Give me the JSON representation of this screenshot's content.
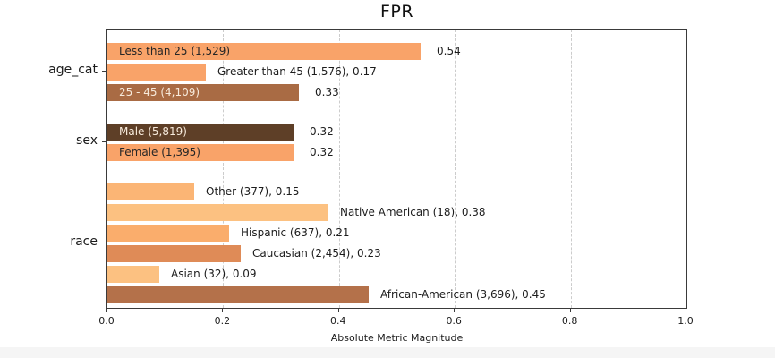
{
  "chart_data": {
    "type": "bar",
    "orientation": "horizontal",
    "title": "FPR",
    "xlabel": "Absolute Metric Magnitude",
    "xlim": [
      0.0,
      1.0
    ],
    "xticks": [
      {
        "value": 0.0,
        "label": "0.0"
      },
      {
        "value": 0.2,
        "label": "0.2"
      },
      {
        "value": 0.4,
        "label": "0.4"
      },
      {
        "value": 0.6,
        "label": "0.6"
      },
      {
        "value": 0.8,
        "label": "0.8"
      },
      {
        "value": 1.0,
        "label": "1.0"
      }
    ],
    "grid": "vertical-dashed",
    "grid_color": "#cccccc",
    "axis_color": "#3a3a3a",
    "groups": [
      {
        "name": "age_cat",
        "bars": [
          {
            "label": "Less than 25",
            "count": "1,529",
            "value": 0.54,
            "color": "#F9A369",
            "label_inside": true,
            "inside_text": "Less than 25 (1,529)",
            "outside_text": "0.54",
            "inside_text_color": "#262626"
          },
          {
            "label": "Greater than 45",
            "count": "1,576",
            "value": 0.17,
            "color": "#F9A369",
            "label_inside": false,
            "outside_text": "Greater than 45 (1,576), 0.17"
          },
          {
            "label": "25 - 45",
            "count": "4,109",
            "value": 0.33,
            "color": "#A96B44",
            "label_inside": true,
            "inside_text": "25 - 45 (4,109)",
            "outside_text": "0.33",
            "inside_text_color": "#F7EADB"
          }
        ]
      },
      {
        "name": "sex",
        "bars": [
          {
            "label": "Male",
            "count": "5,819",
            "value": 0.32,
            "color": "#5E3F27",
            "label_inside": true,
            "inside_text": "Male (5,819)",
            "outside_text": "0.32",
            "inside_text_color": "#F7EADB"
          },
          {
            "label": "Female",
            "count": "1,395",
            "value": 0.32,
            "color": "#F9A369",
            "label_inside": true,
            "inside_text": "Female (1,395)",
            "outside_text": "0.32",
            "inside_text_color": "#262626"
          }
        ]
      },
      {
        "name": "race",
        "bars": [
          {
            "label": "Other",
            "count": "377",
            "value": 0.15,
            "color": "#FBB575",
            "label_inside": false,
            "outside_text": "Other (377), 0.15"
          },
          {
            "label": "Native American",
            "count": "18",
            "value": 0.38,
            "color": "#FCC181",
            "label_inside": false,
            "outside_text": "Native American (18), 0.38"
          },
          {
            "label": "Hispanic",
            "count": "637",
            "value": 0.21,
            "color": "#FAAD6C",
            "label_inside": false,
            "outside_text": "Hispanic (637), 0.21"
          },
          {
            "label": "Caucasian",
            "count": "2,454",
            "value": 0.23,
            "color": "#DF8B57",
            "label_inside": false,
            "outside_text": "Caucasian (2,454), 0.23"
          },
          {
            "label": "Asian",
            "count": "32",
            "value": 0.09,
            "color": "#FCC181",
            "label_inside": false,
            "outside_text": "Asian (32), 0.09"
          },
          {
            "label": "African-American",
            "count": "3,696",
            "value": 0.45,
            "color": "#B4714A",
            "label_inside": false,
            "outside_text": "African-American (3,696), 0.45"
          }
        ]
      }
    ]
  }
}
